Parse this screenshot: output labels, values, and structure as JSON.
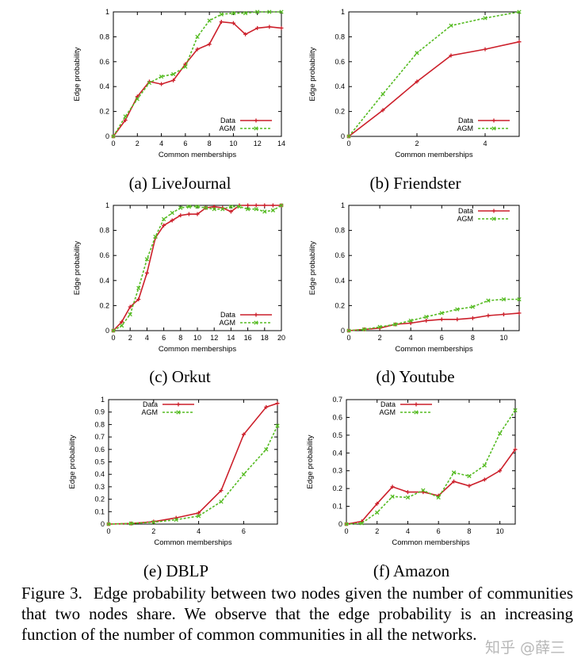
{
  "caption": {
    "label": "Figure 3.",
    "text": "Edge probability between two nodes given the number of communities that two nodes share. We observe that the edge probability is an increasing function of the number of common communities in all the networks."
  },
  "watermark": "知乎 @薛三",
  "colors": {
    "data": "#cc1f2a",
    "agm": "#55bb22"
  },
  "chart_data": [
    {
      "id": "a",
      "type": "line",
      "subcaption": "(a)  LiveJournal",
      "xlabel": "Common memberships",
      "ylabel": "Edge probability",
      "xlim": [
        0,
        14
      ],
      "ylim": [
        0,
        1
      ],
      "xticks": [
        0,
        2,
        4,
        6,
        8,
        10,
        12,
        14
      ],
      "xtick_labels": [
        "0",
        "2",
        "4",
        "6",
        "8",
        "10",
        "12",
        "14"
      ],
      "yticks": [
        0,
        0.2,
        0.4,
        0.6,
        0.8,
        1
      ],
      "ytick_labels": [
        "0",
        "0.2",
        "0.4",
        "0.6",
        "0.8",
        "1"
      ],
      "legend_position": "bottom-right",
      "series": [
        {
          "name": "Data",
          "x": [
            0,
            1,
            2,
            3,
            4,
            5,
            6,
            7,
            8,
            9,
            10,
            11,
            12,
            13,
            14
          ],
          "y": [
            0.0,
            0.13,
            0.32,
            0.44,
            0.42,
            0.45,
            0.58,
            0.7,
            0.74,
            0.92,
            0.91,
            0.82,
            0.87,
            0.88,
            0.87
          ]
        },
        {
          "name": "AGM",
          "x": [
            0,
            1,
            2,
            3,
            4,
            5,
            6,
            7,
            8,
            9,
            10,
            11,
            12,
            13,
            14
          ],
          "y": [
            0.0,
            0.16,
            0.3,
            0.43,
            0.48,
            0.5,
            0.56,
            0.8,
            0.93,
            0.98,
            0.99,
            0.99,
            1.0,
            1.0,
            1.0
          ]
        }
      ]
    },
    {
      "id": "b",
      "type": "line",
      "subcaption": "(b)  Friendster",
      "xlabel": "Common memberships",
      "ylabel": "Edge probability",
      "xlim": [
        0,
        5
      ],
      "ylim": [
        0,
        1
      ],
      "xticks": [
        0,
        2,
        4
      ],
      "xtick_labels": [
        "0",
        "2",
        "4"
      ],
      "yticks": [
        0,
        0.2,
        0.4,
        0.6,
        0.8,
        1
      ],
      "ytick_labels": [
        "0",
        "0.2",
        "0.4",
        "0.6",
        "0.8",
        "1"
      ],
      "legend_position": "bottom-right",
      "series": [
        {
          "name": "Data",
          "x": [
            0,
            1,
            2,
            3,
            4,
            5
          ],
          "y": [
            0.0,
            0.21,
            0.44,
            0.65,
            0.7,
            0.76
          ]
        },
        {
          "name": "AGM",
          "x": [
            0,
            1,
            2,
            3,
            4,
            5
          ],
          "y": [
            0.0,
            0.34,
            0.67,
            0.89,
            0.95,
            1.0
          ]
        }
      ]
    },
    {
      "id": "c",
      "type": "line",
      "subcaption": "(c)  Orkut",
      "xlabel": "Common memberships",
      "ylabel": "Edge probability",
      "xlim": [
        0,
        20
      ],
      "ylim": [
        0,
        1
      ],
      "xticks": [
        0,
        2,
        4,
        6,
        8,
        10,
        12,
        14,
        16,
        18,
        20
      ],
      "xtick_labels": [
        "0",
        "2",
        "4",
        "6",
        "8",
        "10",
        "12",
        "14",
        "16",
        "18",
        "20"
      ],
      "yticks": [
        0,
        0.2,
        0.4,
        0.6,
        0.8,
        1
      ],
      "ytick_labels": [
        "0",
        "0.2",
        "0.4",
        "0.6",
        "0.8",
        "1"
      ],
      "legend_position": "bottom-right",
      "series": [
        {
          "name": "Data",
          "x": [
            0,
            1,
            2,
            3,
            4,
            5,
            6,
            7,
            8,
            9,
            10,
            11,
            12,
            13,
            14,
            15,
            16,
            17,
            18,
            19,
            20
          ],
          "y": [
            0.0,
            0.07,
            0.19,
            0.25,
            0.46,
            0.74,
            0.84,
            0.88,
            0.92,
            0.93,
            0.93,
            0.98,
            0.99,
            0.98,
            0.95,
            1.0,
            1.0,
            1.0,
            1.0,
            1.0,
            1.0
          ]
        },
        {
          "name": "AGM",
          "x": [
            0,
            1,
            2,
            3,
            4,
            5,
            6,
            7,
            8,
            9,
            10,
            11,
            12,
            13,
            14,
            15,
            16,
            17,
            18,
            19,
            20
          ],
          "y": [
            0.0,
            0.04,
            0.13,
            0.34,
            0.57,
            0.75,
            0.89,
            0.94,
            0.98,
            0.99,
            0.99,
            0.98,
            0.97,
            0.97,
            0.99,
            0.99,
            0.97,
            0.97,
            0.95,
            0.96,
            1.0
          ]
        }
      ]
    },
    {
      "id": "d",
      "type": "line",
      "subcaption": "(d)  Youtube",
      "xlabel": "Common memberships",
      "ylabel": "Edge probability",
      "xlim": [
        0,
        11
      ],
      "ylim": [
        0,
        1
      ],
      "xticks": [
        0,
        2,
        4,
        6,
        8,
        10
      ],
      "xtick_labels": [
        "0",
        "2",
        "4",
        "6",
        "8",
        "10"
      ],
      "yticks": [
        0,
        0.2,
        0.4,
        0.6,
        0.8,
        1
      ],
      "ytick_labels": [
        "0",
        "0.2",
        "0.4",
        "0.6",
        "0.8",
        "1"
      ],
      "legend_position": "top-right",
      "series": [
        {
          "name": "Data",
          "x": [
            0,
            1,
            2,
            3,
            4,
            5,
            6,
            7,
            8,
            9,
            10,
            11
          ],
          "y": [
            0.0,
            0.01,
            0.02,
            0.05,
            0.06,
            0.08,
            0.09,
            0.09,
            0.1,
            0.12,
            0.13,
            0.14
          ]
        },
        {
          "name": "AGM",
          "x": [
            0,
            1,
            2,
            3,
            4,
            5,
            6,
            7,
            8,
            9,
            10,
            11
          ],
          "y": [
            0.0,
            0.01,
            0.03,
            0.05,
            0.08,
            0.11,
            0.14,
            0.17,
            0.19,
            0.24,
            0.25,
            0.25
          ]
        }
      ]
    },
    {
      "id": "e",
      "type": "line",
      "subcaption": "(e)  DBLP",
      "xlabel": "Common memberships",
      "ylabel": "Edge probability",
      "xlim": [
        0,
        7.5
      ],
      "ylim": [
        0,
        1
      ],
      "xticks": [
        0,
        2,
        4,
        6
      ],
      "xtick_labels": [
        "0",
        "2",
        "4",
        "6"
      ],
      "yticks": [
        0,
        0.1,
        0.2,
        0.3,
        0.4,
        0.5,
        0.6,
        0.7,
        0.8,
        0.9,
        1
      ],
      "ytick_labels": [
        "0",
        "0.1",
        "0.2",
        "0.3",
        "0.4",
        "0.5",
        "0.6",
        "0.7",
        "0.8",
        "0.9",
        "1"
      ],
      "legend_position": "top-left",
      "series": [
        {
          "name": "Data",
          "x": [
            0,
            1,
            2,
            3,
            4,
            5,
            6,
            7,
            7.5
          ],
          "y": [
            0.0,
            0.005,
            0.02,
            0.05,
            0.09,
            0.27,
            0.72,
            0.94,
            0.97
          ]
        },
        {
          "name": "AGM",
          "x": [
            0,
            1,
            2,
            3,
            4,
            5,
            6,
            7,
            7.5
          ],
          "y": [
            0.0,
            0.005,
            0.015,
            0.035,
            0.065,
            0.18,
            0.4,
            0.6,
            0.79
          ]
        }
      ]
    },
    {
      "id": "f",
      "type": "line",
      "subcaption": "(f)  Amazon",
      "xlabel": "Common memberships",
      "ylabel": "Edge probability",
      "xlim": [
        0,
        11
      ],
      "ylim": [
        0,
        0.7
      ],
      "xticks": [
        0,
        2,
        4,
        6,
        8,
        10
      ],
      "xtick_labels": [
        "0",
        "2",
        "4",
        "6",
        "8",
        "10"
      ],
      "yticks": [
        0,
        0.1,
        0.2,
        0.3,
        0.4,
        0.5,
        0.6,
        0.7
      ],
      "ytick_labels": [
        "0",
        "0.1",
        "0.2",
        "0.3",
        "0.4",
        "0.5",
        "0.6",
        "0.7"
      ],
      "legend_position": "top-left",
      "series": [
        {
          "name": "Data",
          "x": [
            0,
            1,
            2,
            3,
            4,
            5,
            6,
            7,
            8,
            9,
            10,
            11
          ],
          "y": [
            0.0,
            0.015,
            0.115,
            0.21,
            0.18,
            0.18,
            0.16,
            0.24,
            0.215,
            0.25,
            0.3,
            0.42
          ]
        },
        {
          "name": "AGM",
          "x": [
            0,
            1,
            2,
            3,
            4,
            5,
            6,
            7,
            8,
            9,
            10,
            11
          ],
          "y": [
            0.0,
            0.005,
            0.065,
            0.155,
            0.15,
            0.19,
            0.15,
            0.29,
            0.27,
            0.33,
            0.51,
            0.64
          ]
        }
      ]
    }
  ]
}
